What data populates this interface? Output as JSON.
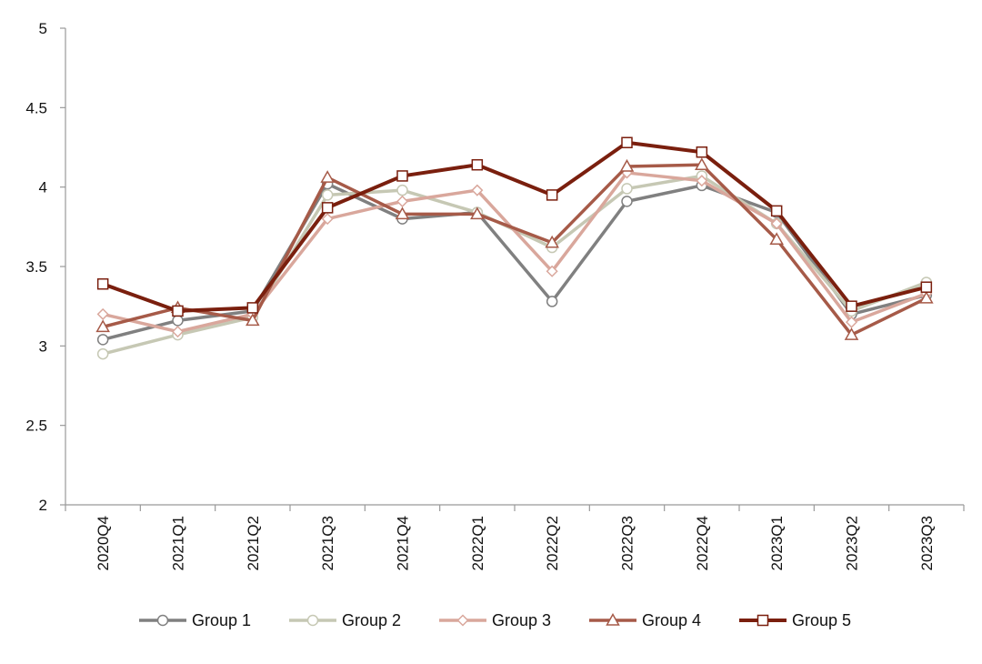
{
  "chart_data": {
    "type": "line",
    "categories": [
      "2020Q4",
      "2021Q1",
      "2021Q2",
      "2021Q3",
      "2021Q4",
      "2022Q1",
      "2022Q2",
      "2022Q3",
      "2022Q4",
      "2023Q1",
      "2023Q2",
      "2023Q3"
    ],
    "ylim": [
      2,
      5
    ],
    "yticks": [
      "2",
      "2.5",
      "3",
      "3.5",
      "4",
      "4.5",
      "5"
    ],
    "grid": false,
    "legend_position": "bottom",
    "series": [
      {
        "name": "Group 1",
        "color": "#808080",
        "marker": "circle",
        "values": [
          3.04,
          3.16,
          3.22,
          4.02,
          3.8,
          3.84,
          3.28,
          3.91,
          4.01,
          3.84,
          3.2,
          3.32
        ]
      },
      {
        "name": "Group 2",
        "color": "#c6c8b4",
        "marker": "circle",
        "values": [
          2.95,
          3.07,
          3.18,
          3.95,
          3.98,
          3.84,
          3.62,
          3.99,
          4.07,
          3.77,
          3.22,
          3.4
        ]
      },
      {
        "name": "Group 3",
        "color": "#d9a79c",
        "marker": "diamond",
        "values": [
          3.2,
          3.09,
          3.2,
          3.8,
          3.91,
          3.98,
          3.47,
          4.09,
          4.04,
          3.77,
          3.15,
          3.33
        ]
      },
      {
        "name": "Group 4",
        "color": "#a65a48",
        "marker": "triangle",
        "values": [
          3.12,
          3.24,
          3.16,
          4.06,
          3.83,
          3.83,
          3.65,
          4.13,
          4.14,
          3.67,
          3.07,
          3.3
        ]
      },
      {
        "name": "Group 5",
        "color": "#7a1f0e",
        "marker": "square",
        "values": [
          3.39,
          3.22,
          3.24,
          3.87,
          4.07,
          4.14,
          3.95,
          4.28,
          4.22,
          3.85,
          3.25,
          3.37
        ]
      }
    ]
  }
}
